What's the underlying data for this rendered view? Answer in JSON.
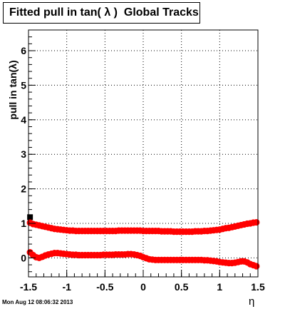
{
  "title": "Fitted pull in tan( λ )  Global Tracks",
  "timestamp": "Mon Aug 12 08:06:32 2013",
  "chart_data": {
    "type": "scatter",
    "title": "Fitted pull in tan( λ )  Global Tracks",
    "xlabel": "η",
    "ylabel": "pull in tan(λ)",
    "xlim": [
      -1.5,
      1.5
    ],
    "ylim": [
      -0.55,
      6.6
    ],
    "grid": true,
    "x_ticks": [
      -1.5,
      -1,
      -0.5,
      0,
      0.5,
      1,
      1.5
    ],
    "x_tick_labels": [
      "-1.5",
      "-1",
      "-0.5",
      "0",
      "0.5",
      "1",
      "1.5"
    ],
    "y_ticks": [
      0,
      1,
      2,
      3,
      4,
      5,
      6
    ],
    "y_tick_labels": [
      "0",
      "1",
      "2",
      "3",
      "4",
      "5",
      "6"
    ],
    "series": [
      {
        "color": "#ff0000",
        "x": [
          -1.48,
          -1.44,
          -1.4,
          -1.36,
          -1.32,
          -1.28,
          -1.24,
          -1.2,
          -1.16,
          -1.12,
          -1.08,
          -1.04,
          -1.0,
          -0.96,
          -0.92,
          -0.88,
          -0.84,
          -0.8,
          -0.76,
          -0.72,
          -0.68,
          -0.64,
          -0.6,
          -0.56,
          -0.52,
          -0.48,
          -0.44,
          -0.4,
          -0.36,
          -0.32,
          -0.28,
          -0.24,
          -0.2,
          -0.16,
          -0.12,
          -0.08,
          -0.04,
          0.0,
          0.04,
          0.08,
          0.12,
          0.16,
          0.2,
          0.24,
          0.28,
          0.32,
          0.36,
          0.4,
          0.44,
          0.48,
          0.52,
          0.56,
          0.6,
          0.64,
          0.68,
          0.72,
          0.76,
          0.8,
          0.84,
          0.88,
          0.92,
          0.96,
          1.0,
          1.04,
          1.08,
          1.12,
          1.16,
          1.2,
          1.24,
          1.28,
          1.32,
          1.36,
          1.4,
          1.44,
          1.48
        ],
        "y": [
          1.02,
          0.98,
          0.96,
          0.94,
          0.92,
          0.9,
          0.88,
          0.86,
          0.84,
          0.83,
          0.82,
          0.81,
          0.8,
          0.79,
          0.79,
          0.78,
          0.78,
          0.78,
          0.78,
          0.78,
          0.78,
          0.78,
          0.78,
          0.78,
          0.78,
          0.78,
          0.78,
          0.78,
          0.78,
          0.79,
          0.79,
          0.79,
          0.79,
          0.79,
          0.79,
          0.79,
          0.79,
          0.78,
          0.78,
          0.78,
          0.78,
          0.78,
          0.78,
          0.77,
          0.77,
          0.77,
          0.77,
          0.76,
          0.76,
          0.76,
          0.76,
          0.76,
          0.76,
          0.76,
          0.77,
          0.77,
          0.77,
          0.78,
          0.78,
          0.79,
          0.8,
          0.81,
          0.82,
          0.84,
          0.86,
          0.87,
          0.89,
          0.91,
          0.93,
          0.95,
          0.97,
          0.99,
          1.0,
          1.02,
          1.03
        ]
      },
      {
        "color": "#ff0000",
        "x": [
          -1.48,
          -1.44,
          -1.4,
          -1.36,
          -1.32,
          -1.28,
          -1.24,
          -1.2,
          -1.16,
          -1.12,
          -1.08,
          -1.04,
          -1.0,
          -0.96,
          -0.92,
          -0.88,
          -0.84,
          -0.8,
          -0.76,
          -0.72,
          -0.68,
          -0.64,
          -0.6,
          -0.56,
          -0.52,
          -0.48,
          -0.44,
          -0.4,
          -0.36,
          -0.32,
          -0.28,
          -0.24,
          -0.2,
          -0.16,
          -0.12,
          -0.08,
          -0.04,
          0.0,
          0.04,
          0.08,
          0.12,
          0.16,
          0.2,
          0.24,
          0.28,
          0.32,
          0.36,
          0.4,
          0.44,
          0.48,
          0.52,
          0.56,
          0.6,
          0.64,
          0.68,
          0.72,
          0.76,
          0.8,
          0.84,
          0.88,
          0.92,
          0.96,
          1.0,
          1.04,
          1.08,
          1.12,
          1.16,
          1.2,
          1.24,
          1.28,
          1.32,
          1.36,
          1.4,
          1.44,
          1.48
        ],
        "y": [
          0.16,
          0.08,
          0.02,
          0.0,
          0.03,
          0.07,
          0.1,
          0.12,
          0.14,
          0.14,
          0.13,
          0.12,
          0.11,
          0.1,
          0.09,
          0.09,
          0.08,
          0.08,
          0.08,
          0.08,
          0.08,
          0.08,
          0.08,
          0.08,
          0.09,
          0.09,
          0.09,
          0.09,
          0.1,
          0.1,
          0.1,
          0.1,
          0.11,
          0.11,
          0.1,
          0.08,
          0.06,
          0.02,
          -0.01,
          -0.04,
          -0.05,
          -0.06,
          -0.06,
          -0.06,
          -0.06,
          -0.06,
          -0.06,
          -0.06,
          -0.06,
          -0.06,
          -0.06,
          -0.06,
          -0.06,
          -0.06,
          -0.06,
          -0.06,
          -0.06,
          -0.07,
          -0.07,
          -0.08,
          -0.09,
          -0.1,
          -0.12,
          -0.13,
          -0.14,
          -0.15,
          -0.15,
          -0.14,
          -0.12,
          -0.1,
          -0.1,
          -0.13,
          -0.18,
          -0.21,
          -0.24
        ]
      }
    ],
    "highlight": {
      "x": -1.48,
      "y": 1.18,
      "color": "#000000"
    }
  }
}
